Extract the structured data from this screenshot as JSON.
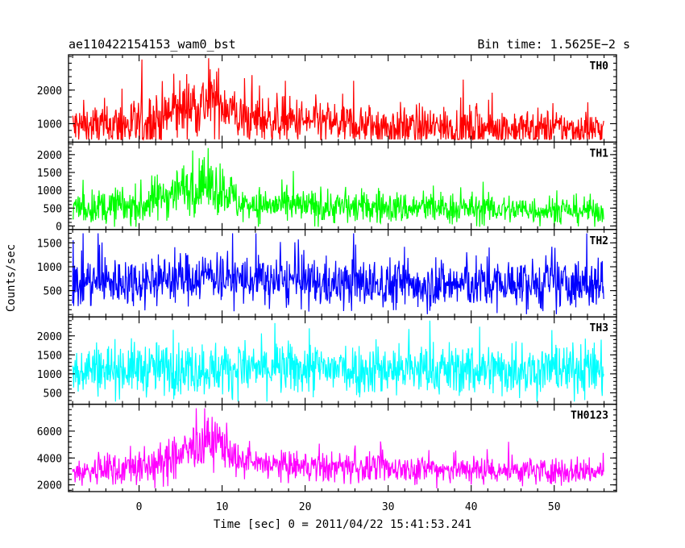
{
  "header": {
    "left": "ae110422154153_wam0_bst",
    "right": "Bin time: 1.5625E−2 s"
  },
  "chart_data": {
    "type": "line",
    "xlabel": "Time [sec] 0 = 2011/04/22 15:41:53.241",
    "ylabel": "Counts/sec",
    "xlim": [
      -8.5,
      57.5
    ],
    "x_range": [
      -8,
      56
    ],
    "x_ticks": [
      0,
      10,
      20,
      30,
      40,
      50
    ],
    "panels": [
      {
        "name": "TH0",
        "color": "#ff0000",
        "ylim": [
          450,
          3050
        ],
        "yticks": [
          1000,
          2000
        ],
        "clip_max": 2950,
        "profile": [
          [
            -8,
            900
          ],
          [
            0,
            950
          ],
          [
            3,
            1200
          ],
          [
            6,
            1550
          ],
          [
            9,
            1650
          ],
          [
            10.5,
            1600
          ],
          [
            12,
            1150
          ],
          [
            20,
            1050
          ],
          [
            30,
            900
          ],
          [
            56,
            820
          ]
        ],
        "noise": [
          [
            -8,
            600
          ],
          [
            3,
            800
          ],
          [
            10,
            900
          ],
          [
            12,
            650
          ],
          [
            56,
            500
          ]
        ]
      },
      {
        "name": "TH1",
        "color": "#00ff00",
        "ylim": [
          -100,
          2350
        ],
        "yticks": [
          0,
          500,
          1000,
          1500,
          2000
        ],
        "clip_max": 2200,
        "profile": [
          [
            -8,
            500
          ],
          [
            0,
            550
          ],
          [
            3,
            850
          ],
          [
            5,
            1050
          ],
          [
            8,
            1100
          ],
          [
            10.5,
            1050
          ],
          [
            12,
            600
          ],
          [
            20,
            550
          ],
          [
            56,
            420
          ]
        ],
        "noise": [
          [
            -8,
            380
          ],
          [
            3,
            600
          ],
          [
            10,
            700
          ],
          [
            12,
            450
          ],
          [
            56,
            350
          ]
        ]
      },
      {
        "name": "TH2",
        "color": "#0000ff",
        "ylim": [
          -50,
          1780
        ],
        "yticks": [
          500,
          1000,
          1500
        ],
        "clip_max": 1700,
        "profile": [
          [
            -8,
            650
          ],
          [
            5,
            750
          ],
          [
            9,
            850
          ],
          [
            11,
            750
          ],
          [
            20,
            650
          ],
          [
            56,
            620
          ]
        ],
        "noise": [
          [
            -8,
            470
          ],
          [
            56,
            470
          ]
        ]
      },
      {
        "name": "TH3",
        "color": "#00ffff",
        "ylim": [
          200,
          2500
        ],
        "yticks": [
          500,
          1000,
          1500,
          2000
        ],
        "clip_max": 2400,
        "profile": [
          [
            -8,
            1150
          ],
          [
            56,
            1100
          ]
        ],
        "noise": [
          [
            -8,
            620
          ],
          [
            56,
            620
          ]
        ]
      },
      {
        "name": "TH0123",
        "color": "#ff00ff",
        "ylim": [
          1500,
          8000
        ],
        "yticks": [
          2000,
          4000,
          6000
        ],
        "clip_max": 7700,
        "profile": [
          [
            -8,
            2900
          ],
          [
            3,
            3500
          ],
          [
            6,
            4600
          ],
          [
            9,
            5300
          ],
          [
            10.5,
            5000
          ],
          [
            12,
            3600
          ],
          [
            20,
            3300
          ],
          [
            56,
            3000
          ]
        ],
        "noise": [
          [
            -8,
            900
          ],
          [
            3,
            1400
          ],
          [
            10,
            1700
          ],
          [
            12,
            1000
          ],
          [
            56,
            900
          ]
        ]
      }
    ]
  }
}
